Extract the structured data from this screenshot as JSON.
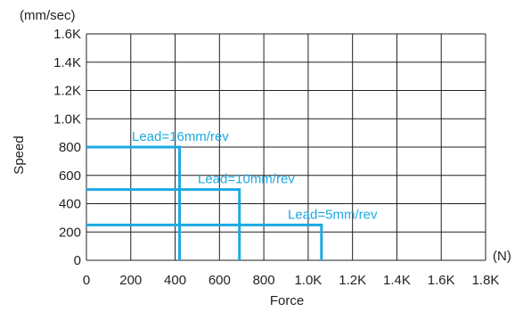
{
  "chart_data": {
    "type": "line",
    "title": "",
    "xlabel": "Force",
    "ylabel": "Speed",
    "xunit": "(N)",
    "yunit": "(mm/sec)",
    "xlim": [
      0,
      1800
    ],
    "ylim": [
      0,
      1600
    ],
    "grid": true,
    "legend": "none",
    "x_ticks": [
      0,
      200,
      400,
      600,
      800,
      1000,
      1200,
      1400,
      1600,
      1800
    ],
    "x_tick_labels": [
      "0",
      "200",
      "400",
      "600",
      "800",
      "1.0K",
      "1.2K",
      "1.4K",
      "1.6K",
      "1.8K"
    ],
    "y_ticks": [
      0,
      200,
      400,
      600,
      800,
      1000,
      1200,
      1400,
      1600
    ],
    "y_tick_labels": [
      "0",
      "200",
      "400",
      "600",
      "800",
      "1.0K",
      "1.2K",
      "1.4K",
      "1.6K"
    ],
    "series": [
      {
        "name": "Lead=16mm/rev",
        "color": "#1ba9e1",
        "max_speed": 800,
        "max_force": 420
      },
      {
        "name": "Lead=10mm/rev",
        "color": "#1ba9e1",
        "max_speed": 500,
        "max_force": 690
      },
      {
        "name": "Lead=5mm/rev",
        "color": "#1ba9e1",
        "max_speed": 250,
        "max_force": 1060
      }
    ]
  }
}
